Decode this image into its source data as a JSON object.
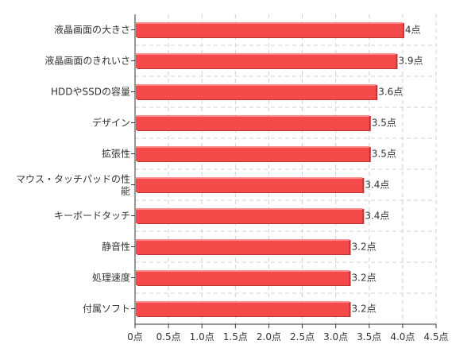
{
  "chart_data": {
    "type": "bar",
    "orientation": "horizontal",
    "categories": [
      "液晶画面の大きさ",
      "液晶画面のきれいさ",
      "HDDやSSDの容量",
      "デザイン",
      "拡張性",
      "マウス・タッチパッドの性能",
      "キーボードタッチ",
      "静音性",
      "処理速度",
      "付属ソフト"
    ],
    "category_lines": [
      [
        "液晶画面の大きさ"
      ],
      [
        "液晶画面のきれいさ"
      ],
      [
        "HDDやSSDの容量"
      ],
      [
        "デザイン"
      ],
      [
        "拡張性"
      ],
      [
        "マウス・タッチパッドの性",
        "能"
      ],
      [
        "キーボードタッチ"
      ],
      [
        "静音性"
      ],
      [
        "処理速度"
      ],
      [
        "付属ソフト"
      ]
    ],
    "values": [
      4.0,
      3.9,
      3.6,
      3.5,
      3.5,
      3.4,
      3.4,
      3.2,
      3.2,
      3.2
    ],
    "data_labels": [
      "4点",
      "3.9点",
      "3.6点",
      "3.5点",
      "3.5点",
      "3.4点",
      "3.4点",
      "3.2点",
      "3.2点",
      "3.2点"
    ],
    "xlim": [
      0,
      4.5
    ],
    "x_ticks": [
      0,
      0.5,
      1.0,
      1.5,
      2.0,
      2.5,
      3.0,
      3.5,
      4.0,
      4.5
    ],
    "x_tick_labels": [
      "0点",
      "0.5点",
      "1.0点",
      "1.5点",
      "2.0点",
      "2.5点",
      "3.0点",
      "3.5点",
      "4.0点",
      "4.5点"
    ],
    "grid": true,
    "bar_color": "#f54a4a",
    "bar_shadow_color": "#b83434",
    "title": "",
    "xlabel": "",
    "ylabel": ""
  }
}
